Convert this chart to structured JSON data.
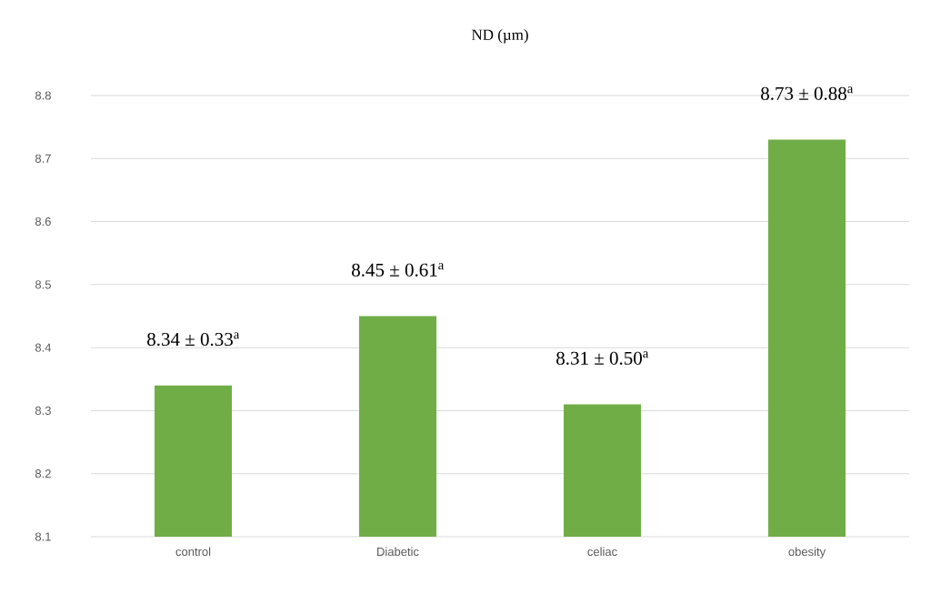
{
  "chart_data": {
    "type": "bar",
    "title": "ND (µm)",
    "categories": [
      "control",
      "Diabetic",
      "celiac",
      "obesity"
    ],
    "values": [
      8.34,
      8.45,
      8.31,
      8.73
    ],
    "value_labels": [
      "8.34 ± 0.33$^{a}$",
      "8.45 ± 0.61$^{a}$",
      "8.31 ± 0.50$^{a}$",
      "8.73 ± 0.88$^{a}$"
    ],
    "color": "#70ad47",
    "ylim": [
      8.1,
      8.8
    ],
    "yticks": [
      8.1,
      8.2,
      8.3,
      8.4,
      8.5,
      8.6,
      8.7,
      8.8
    ],
    "grid": "y"
  }
}
